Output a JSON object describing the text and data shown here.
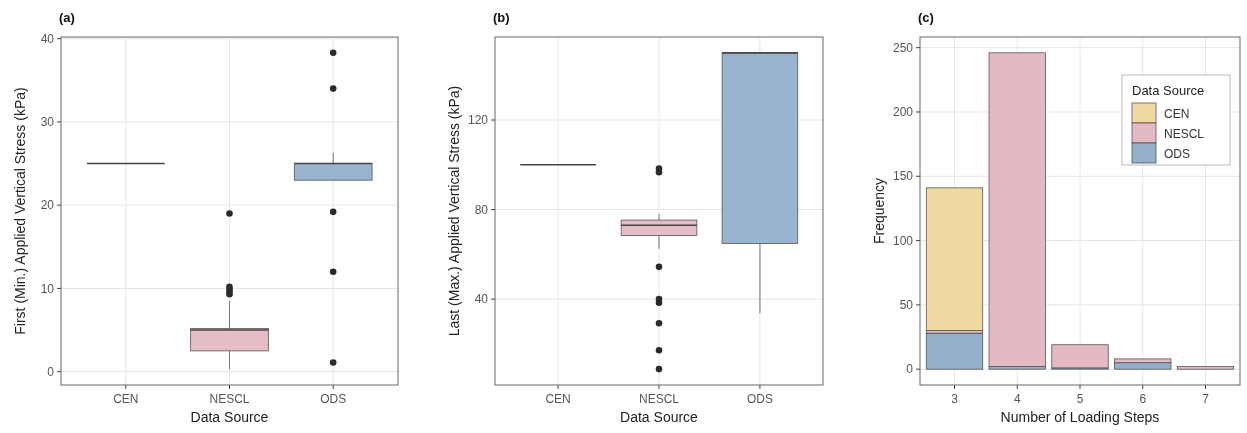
{
  "chart_data": [
    {
      "type": "box",
      "title": "(a)",
      "xlabel": "Data Source",
      "ylabel": "First (Min.) Applied Vertical Stress (kPa)",
      "categories": [
        "CEN",
        "NESCL",
        "ODS"
      ],
      "colors": [
        "#444444",
        "#e4b9c4",
        "#94b0cc"
      ],
      "boxes": [
        {
          "low": 25,
          "q1": 25,
          "median": 25,
          "q3": 25,
          "high": 25
        },
        {
          "low": 0.3,
          "q1": 2.5,
          "median": 5.0,
          "q3": 5.2,
          "high": 8.5,
          "outliers": [
            9.3,
            9.6,
            9.9,
            10.2,
            19.0
          ]
        },
        {
          "low": 23,
          "q1": 23,
          "median": 25,
          "q3": 25,
          "high": 26.3,
          "outliers": [
            38.3,
            34,
            19.2,
            12,
            1.1
          ]
        }
      ],
      "ylim": [
        -1.6,
        40.2
      ],
      "yticks": [
        0,
        10,
        20,
        30,
        40
      ],
      "grid": true
    },
    {
      "type": "box",
      "title": "(b)",
      "xlabel": "Data Source",
      "ylabel": "Last (Max.) Applied Vertical Stress (kPa)",
      "categories": [
        "CEN",
        "NESCL",
        "ODS"
      ],
      "colors": [
        "#444444",
        "#e4b9c4",
        "#94b0cc"
      ],
      "boxes": [
        {
          "low": 100,
          "q1": 100,
          "median": 100,
          "q3": 100,
          "high": 100
        },
        {
          "low": 62.5,
          "q1": 68.4,
          "median": 73,
          "q3": 75.3,
          "high": 78,
          "outliers": [
            96.7,
            98.3,
            54.4,
            40,
            38.4,
            29.2,
            17.1,
            8.7
          ]
        },
        {
          "low": 33.6,
          "q1": 64.8,
          "median": 150,
          "q3": 150,
          "high": 150
        }
      ],
      "ylim": [
        1.6,
        157.1
      ],
      "yticks": [
        40,
        80,
        120
      ],
      "grid": true
    },
    {
      "type": "bar",
      "stacked": true,
      "title": "(c)",
      "xlabel": "Number of Loading Steps",
      "ylabel": "Frequency",
      "legend_title": "Data Source",
      "legend": "top right",
      "categories": [
        "3",
        "4",
        "5",
        "6",
        "7"
      ],
      "series": [
        {
          "name": "ODS",
          "color": "#94b0cc",
          "values": [
            28,
            2,
            1,
            5,
            0
          ]
        },
        {
          "name": "NESCL",
          "color": "#e4b9c4",
          "values": [
            2,
            244,
            18,
            3,
            2
          ]
        },
        {
          "name": "CEN",
          "color": "#f0d9a0",
          "values": [
            111,
            0,
            0,
            0,
            0
          ]
        }
      ],
      "ylim": [
        -12.3,
        258.3
      ],
      "yticks": [
        0,
        50,
        100,
        150,
        200,
        250
      ],
      "grid": true
    }
  ]
}
